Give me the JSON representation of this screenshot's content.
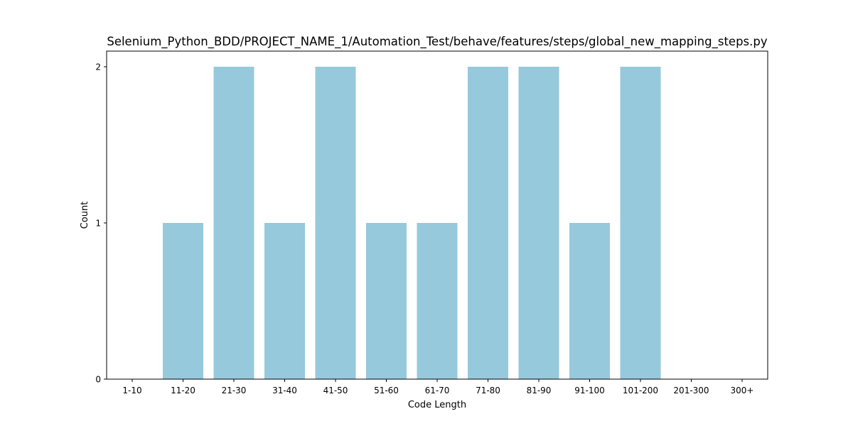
{
  "chart_data": {
    "type": "bar",
    "title": "Selenium_Python_BDD/PROJECT_NAME_1/Automation_Test/behave/features/steps/global_new_mapping_steps.py",
    "xlabel": "Code Length",
    "ylabel": "Count",
    "categories": [
      "1-10",
      "11-20",
      "21-30",
      "31-40",
      "41-50",
      "51-60",
      "61-70",
      "71-80",
      "81-90",
      "91-100",
      "101-200",
      "201-300",
      "300+"
    ],
    "values": [
      0,
      1,
      2,
      1,
      2,
      1,
      1,
      2,
      2,
      1,
      2,
      0,
      0
    ],
    "ylim": [
      0,
      2.1
    ],
    "yticks": [
      "0",
      "1",
      "2"
    ],
    "grid": false,
    "colors": {
      "bar": "#96c9dc",
      "axis": "#000000"
    }
  }
}
